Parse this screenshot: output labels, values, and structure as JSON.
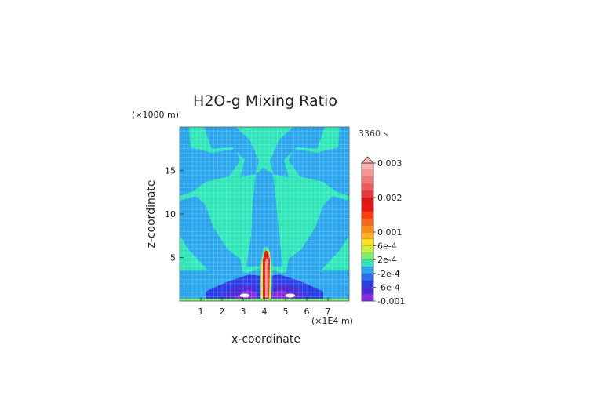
{
  "chart_data": {
    "type": "heatmap",
    "title": "H2O-g Mixing Ratio",
    "time_label": "3360 s",
    "xlabel": "x-coordinate",
    "ylabel": "z-coordinate",
    "x_unit": "(×1E4 m)",
    "y_unit": "(×1000 m)",
    "xlim": [
      0,
      8
    ],
    "ylim": [
      0,
      20
    ],
    "x_ticks": [
      1,
      2,
      3,
      4,
      5,
      6,
      7
    ],
    "y_ticks": [
      5,
      10,
      15
    ],
    "grid": true,
    "colorbar": {
      "levels": [
        -0.001,
        -0.0008,
        -0.0006,
        -0.0004,
        -0.0002,
        0,
        0.0002,
        0.0004,
        0.0006,
        0.0008,
        0.001,
        0.0012,
        0.0014,
        0.0016,
        0.0018,
        0.002,
        0.0022,
        0.0024,
        0.0026,
        0.0028,
        0.003
      ],
      "colors": [
        "#8a2be2",
        "#4b2bd8",
        "#2a3ce6",
        "#2870f0",
        "#2aa6ee",
        "#2ee6b8",
        "#7cf06e",
        "#c8f03a",
        "#ffe01a",
        "#ffb21e",
        "#ff8a1c",
        "#ff6418",
        "#ff3a12",
        "#ec1414",
        "#e01414",
        "#e63a3a",
        "#ef5a5a",
        "#f27878",
        "#f59494",
        "#f8b0b0"
      ],
      "tick_labels": [
        {
          "value": 0.003,
          "label": "0.003"
        },
        {
          "value": 0.002,
          "label": "0.002"
        },
        {
          "value": 0.001,
          "label": "0.001"
        },
        {
          "value": 0.0006,
          "label": "6e-4"
        },
        {
          "value": 0.0002,
          "label": "2e-4"
        },
        {
          "value": -0.0002,
          "label": "-2e-4"
        },
        {
          "value": -0.0006,
          "label": "-6e-4"
        },
        {
          "value": -0.001,
          "label": "-0.001"
        }
      ],
      "extend": "max"
    }
  }
}
